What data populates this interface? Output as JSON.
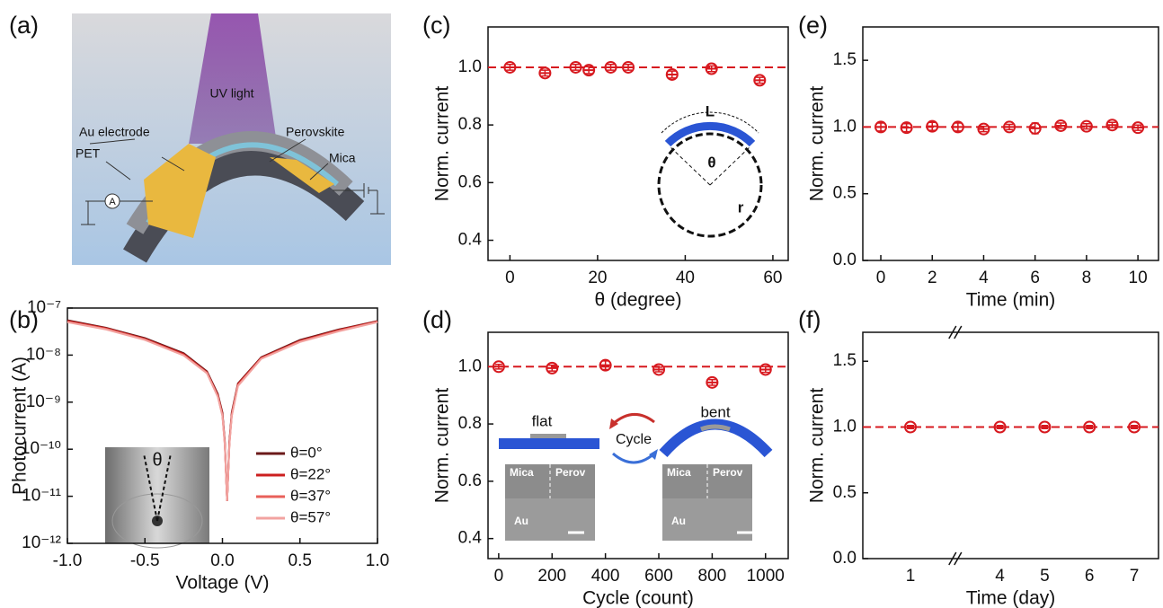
{
  "diagram": {
    "panel_label": "(a)",
    "labels": {
      "uv": "UV light",
      "electrode": "Au electrode",
      "perovskite": "Perovskite",
      "pet": "PET",
      "mica": "Mica",
      "meter": "A"
    }
  },
  "chart_data": [
    {
      "type": "line",
      "panel_label": "(b)",
      "xlabel": "Voltage (V)",
      "ylabel": "Photocurrent (A)",
      "log_y": true,
      "legend": "lower right",
      "inset_label": "θ",
      "x": [
        -1.0,
        -0.75,
        -0.5,
        -0.25,
        -0.1,
        -0.03,
        0,
        0.015,
        0.03,
        0.045,
        0.06,
        0.1,
        0.25,
        0.5,
        0.75,
        1.0
      ],
      "series": [
        {
          "name": "θ=0°",
          "color": "#6b1a1a",
          "values": [
            5.5e-08,
            3.8e-08,
            2.3e-08,
            1.1e-08,
            4.5e-09,
            1.5e-09,
            6e-10,
            1.5e-10,
            8e-12,
            1.5e-10,
            6e-10,
            2.5e-09,
            9e-09,
            2.1e-08,
            3.5e-08,
            5.3e-08
          ]
        },
        {
          "name": "θ=22°",
          "color": "#cc1f1f",
          "values": [
            5.3e-08,
            3.7e-08,
            2.2e-08,
            1.05e-08,
            4.3e-09,
            1.4e-09,
            5.5e-10,
            1.4e-10,
            8e-12,
            1.4e-10,
            5.5e-10,
            2.4e-09,
            8.7e-09,
            2e-08,
            3.4e-08,
            5.2e-08
          ]
        },
        {
          "name": "θ=37°",
          "color": "#e8605a",
          "values": [
            5.1e-08,
            3.6e-08,
            2.15e-08,
            1e-08,
            4.2e-09,
            1.35e-09,
            5.2e-10,
            1.3e-10,
            8e-12,
            1.3e-10,
            5.2e-10,
            2.3e-09,
            8.5e-09,
            1.95e-08,
            3.3e-08,
            5.1e-08
          ]
        },
        {
          "name": "θ=57°",
          "color": "#f2a3a0",
          "values": [
            5e-08,
            3.5e-08,
            2.1e-08,
            9.8e-09,
            4.1e-09,
            1.3e-09,
            5e-10,
            1.25e-10,
            8e-12,
            1.25e-10,
            5e-10,
            2.2e-09,
            8.3e-09,
            1.9e-08,
            3.2e-08,
            5e-08
          ]
        }
      ],
      "xlim": [
        -1,
        1
      ],
      "ylim": [
        1e-12,
        1e-07
      ],
      "xticks": [
        {
          "value": -1,
          "label": "-1.0"
        },
        -0.5,
        {
          "value": 0,
          "label": "0.0"
        },
        0.5,
        {
          "value": 1,
          "label": "1.0"
        }
      ],
      "yticks": [
        {
          "value": 1e-12,
          "label": "10⁻¹²"
        },
        {
          "value": 1e-11,
          "label": "10⁻¹¹"
        },
        {
          "value": 1e-10,
          "label": "10⁻¹⁰"
        },
        {
          "value": 1e-09,
          "label": "10⁻⁹"
        },
        {
          "value": 1e-08,
          "label": "10⁻⁸"
        },
        {
          "value": 1e-07,
          "label": "10⁻⁷"
        }
      ]
    },
    {
      "type": "scatter",
      "panel_label": "(c)",
      "xlabel": "θ (degree)",
      "ylabel": "Norm. current",
      "color": "#d7191f",
      "reference_line": 1,
      "x": [
        0,
        8,
        15,
        18,
        23,
        27,
        37,
        46,
        57
      ],
      "values": [
        1.0,
        0.98,
        1.0,
        0.99,
        1.0,
        1.0,
        0.975,
        0.995,
        0.955
      ],
      "errors": [
        0.01,
        0.01,
        0.01,
        0.012,
        0.01,
        0.01,
        0.012,
        0.01,
        0.01
      ],
      "xlim": [
        -5,
        63.5
      ],
      "ylim": [
        0.33,
        1.14
      ],
      "xticks": [
        0,
        20,
        40,
        60
      ],
      "yticks": [
        0.4,
        0.6,
        0.8,
        {
          "value": 1,
          "label": "1.0"
        }
      ],
      "inset_labels": {
        "length": "L",
        "angle": "θ",
        "radius": "r"
      }
    },
    {
      "type": "scatter",
      "panel_label": "(d)",
      "xlabel": "Cycle (count)",
      "ylabel": "Norm. current",
      "color": "#d7191f",
      "reference_line": 1,
      "x": [
        0,
        200,
        400,
        600,
        800,
        1000
      ],
      "values": [
        1.0,
        0.995,
        1.005,
        0.99,
        0.945,
        0.99
      ],
      "errors": [
        0.008,
        0.01,
        0.015,
        0.008,
        0.01,
        0.01
      ],
      "xlim": [
        -40,
        1085
      ],
      "ylim": [
        0.33,
        1.12
      ],
      "xticks": [
        0,
        200,
        400,
        600,
        800,
        1000
      ],
      "yticks": [
        0.4,
        0.6,
        0.8,
        {
          "value": 1,
          "label": "1.0"
        }
      ],
      "insets": [
        {
          "caption": "flat",
          "labels": [
            "Mica",
            "Perov",
            "Au"
          ]
        },
        {
          "caption": "bent",
          "labels": [
            "Mica",
            "Perov",
            "Au"
          ]
        }
      ],
      "arrow_label": "Cycle"
    },
    {
      "type": "scatter",
      "panel_label": "(e)",
      "xlabel": "Time (min)",
      "ylabel": "Norm. current",
      "color": "#d7191f",
      "reference_line": 1,
      "x": [
        0,
        1,
        2,
        3,
        4,
        5,
        6,
        7,
        8,
        9,
        10
      ],
      "values": [
        1.0,
        0.995,
        1.005,
        1.0,
        0.985,
        1.0,
        0.99,
        1.01,
        1.005,
        1.015,
        0.995
      ],
      "errors": [
        0.03,
        0.03,
        0.03,
        0.03,
        0.02,
        0.02,
        0.04,
        0.02,
        0.02,
        0.02,
        0.02
      ],
      "xlim": [
        -0.7,
        10.8
      ],
      "ylim": [
        0,
        1.75
      ],
      "xticks": [
        0,
        2,
        4,
        6,
        8,
        10
      ],
      "yticks": [
        {
          "value": 0,
          "label": "0.0"
        },
        0.5,
        {
          "value": 1,
          "label": "1.0"
        },
        1.5
      ]
    },
    {
      "type": "scatter",
      "panel_label": "(f)",
      "xlabel": "Time (day)",
      "ylabel": "Norm. current",
      "color": "#d7191f",
      "reference_line": 1,
      "x_break_after_index": 0,
      "categories": [
        "1",
        "4",
        "5",
        "6",
        "7"
      ],
      "values": [
        1.0,
        1.0,
        1.0,
        1.0,
        1.0
      ],
      "errors": [
        0.012,
        0.012,
        0.012,
        0.012,
        0.012
      ],
      "ylim": [
        0,
        1.72
      ],
      "yticks": [
        {
          "value": 0,
          "label": "0.0"
        },
        0.5,
        {
          "value": 1,
          "label": "1.0"
        },
        1.5
      ]
    }
  ]
}
